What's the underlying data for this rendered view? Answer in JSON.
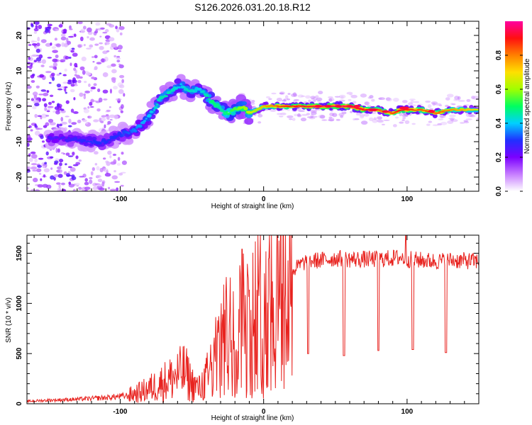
{
  "title": "S126.2026.031.20.18.R12",
  "chart_data": [
    {
      "type": "heatmap",
      "xlabel": "Height of straight line (km)",
      "ylabel": "Frequency (Hz)",
      "xlim": [
        -165,
        150
      ],
      "ylim": [
        -24,
        24
      ],
      "xticks": [
        -100,
        0,
        100
      ],
      "yticks": [
        20,
        10,
        0,
        -10,
        -20
      ],
      "colorbar": {
        "label": "Normalized spectral amplitude",
        "range": [
          0,
          1
        ],
        "ticks": [
          "0.0",
          "0.2",
          "0.4",
          "0.6",
          "0.8"
        ],
        "colormap": [
          "#ffffff",
          "#c77dff",
          "#7b00ff",
          "#2030ff",
          "#00d0ff",
          "#00ff60",
          "#a0ff00",
          "#ffe000",
          "#ff8000",
          "#ff1010",
          "#ff00a0"
        ]
      },
      "ridge": {
        "x": [
          -145,
          -130,
          -120,
          -110,
          -100,
          -90,
          -80,
          -72,
          -65,
          -58,
          -52,
          -45,
          -40,
          -35,
          -30,
          -25,
          -20,
          -15,
          -10,
          -5,
          0,
          10,
          20,
          40,
          60,
          70,
          80,
          90,
          95,
          110,
          120,
          130,
          150
        ],
        "freq": [
          -9,
          -9.5,
          -10,
          -10,
          -8,
          -7,
          -3,
          2,
          4,
          6,
          4,
          5,
          3,
          1,
          -1,
          -2,
          -1,
          0,
          -2,
          -1,
          0,
          0,
          0,
          0,
          0,
          -1,
          -1,
          -2,
          -1,
          -1,
          -2,
          -1,
          -1
        ],
        "amplitude": [
          0.25,
          0.28,
          0.3,
          0.3,
          0.3,
          0.35,
          0.4,
          0.45,
          0.45,
          0.4,
          0.45,
          0.4,
          0.45,
          0.5,
          0.45,
          0.5,
          0.55,
          0.6,
          0.65,
          0.7,
          0.75,
          0.85,
          0.9,
          0.95,
          0.95,
          0.9,
          0.85,
          0.85,
          0.9,
          0.85,
          0.85,
          0.8,
          0.7
        ]
      }
    },
    {
      "type": "line",
      "xlabel": "Height of straight line (km)",
      "ylabel": "SNR (10 * v/v)",
      "xlim": [
        -165,
        150
      ],
      "ylim": [
        0,
        1680
      ],
      "xticks": [
        -100,
        0,
        100
      ],
      "yticks": [
        0,
        500,
        1000,
        1500
      ],
      "color": "#e8231f",
      "series": [
        {
          "name": "SNR",
          "x": [
            -165,
            -150,
            -130,
            -110,
            -95,
            -85,
            -75,
            -65,
            -55,
            -50,
            -45,
            -40,
            -35,
            -30,
            -25,
            -20,
            -15,
            -10,
            -5,
            0,
            5,
            10,
            15,
            20,
            25,
            30,
            40,
            50,
            60,
            70,
            80,
            90,
            95,
            100,
            110,
            120,
            130,
            150
          ],
          "values": [
            25,
            35,
            45,
            60,
            80,
            120,
            180,
            250,
            320,
            200,
            150,
            250,
            400,
            550,
            700,
            700,
            800,
            850,
            900,
            950,
            1050,
            1150,
            1250,
            1320,
            1380,
            1420,
            1430,
            1450,
            1440,
            1440,
            1440,
            1450,
            1460,
            1440,
            1430,
            1420,
            1430,
            1420
          ]
        }
      ],
      "dips": [
        {
          "x": 31,
          "y": 500
        },
        {
          "x": 56,
          "y": 480
        },
        {
          "x": 80,
          "y": 530
        },
        {
          "x": 104,
          "y": 540
        },
        {
          "x": 127,
          "y": 510
        }
      ],
      "peaks": [
        {
          "x": -15,
          "y": 1540
        },
        {
          "x": 99,
          "y": 1680
        }
      ]
    }
  ]
}
